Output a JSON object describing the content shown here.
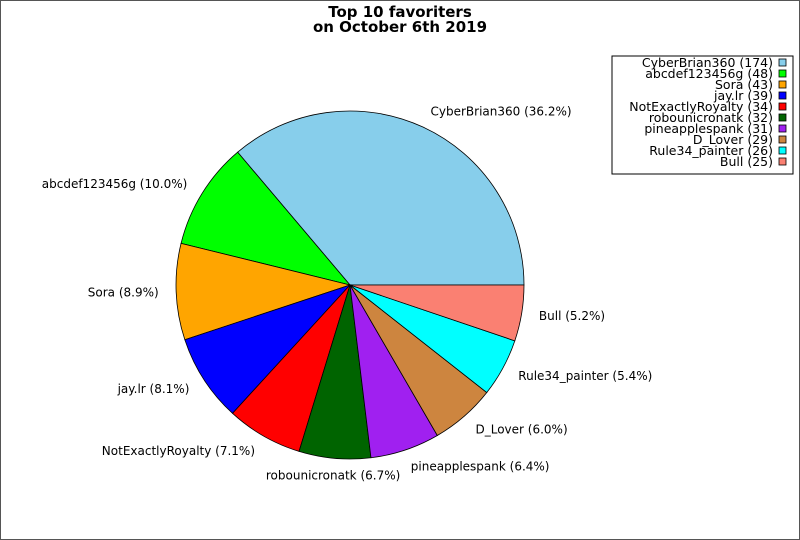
{
  "chart_data": {
    "type": "pie",
    "title": "Top 10 favoriters",
    "subtitle": "on October 6th 2019",
    "slices": [
      {
        "name": "CyberBrian360",
        "value": 174,
        "percent_label": "CyberBrian360 (36.2%)",
        "legend_label": "CyberBrian360 (174)",
        "color": "#87ceeb"
      },
      {
        "name": "abcdef123456g",
        "value": 48,
        "percent_label": "abcdef123456g (10.0%)",
        "legend_label": "abcdef123456g (48)",
        "color": "#00ff00"
      },
      {
        "name": "Sora",
        "value": 43,
        "percent_label": "Sora (8.9%)",
        "legend_label": "Sora (43)",
        "color": "#ffa500"
      },
      {
        "name": "jay.lr",
        "value": 39,
        "percent_label": "jay.lr (8.1%)",
        "legend_label": "jay.lr (39)",
        "color": "#0000ff"
      },
      {
        "name": "NotExactlyRoyalty",
        "value": 34,
        "percent_label": "NotExactlyRoyalty (7.1%)",
        "legend_label": "NotExactlyRoyalty (34)",
        "color": "#ff0000"
      },
      {
        "name": "robounicronatk",
        "value": 32,
        "percent_label": "robounicronatk (6.7%)",
        "legend_label": "robounicronatk (32)",
        "color": "#006400"
      },
      {
        "name": "pineapplespank",
        "value": 31,
        "percent_label": "pineapplespank (6.4%)",
        "legend_label": "pineapplespank (31)",
        "color": "#a020f0"
      },
      {
        "name": "D_Lover",
        "value": 29,
        "percent_label": "D_Lover (6.0%)",
        "legend_label": "D_Lover (29)",
        "color": "#cd853f"
      },
      {
        "name": "Rule34_painter",
        "value": 26,
        "percent_label": "Rule34_painter (5.4%)",
        "legend_label": "Rule34_painter (26)",
        "color": "#00ffff"
      },
      {
        "name": "Bull",
        "value": 25,
        "percent_label": "Bull (5.2%)",
        "legend_label": "Bull (25)",
        "color": "#fa8072"
      }
    ],
    "start_angle_deg": 0,
    "direction": "counterclockwise",
    "legend_position": "top-right"
  }
}
